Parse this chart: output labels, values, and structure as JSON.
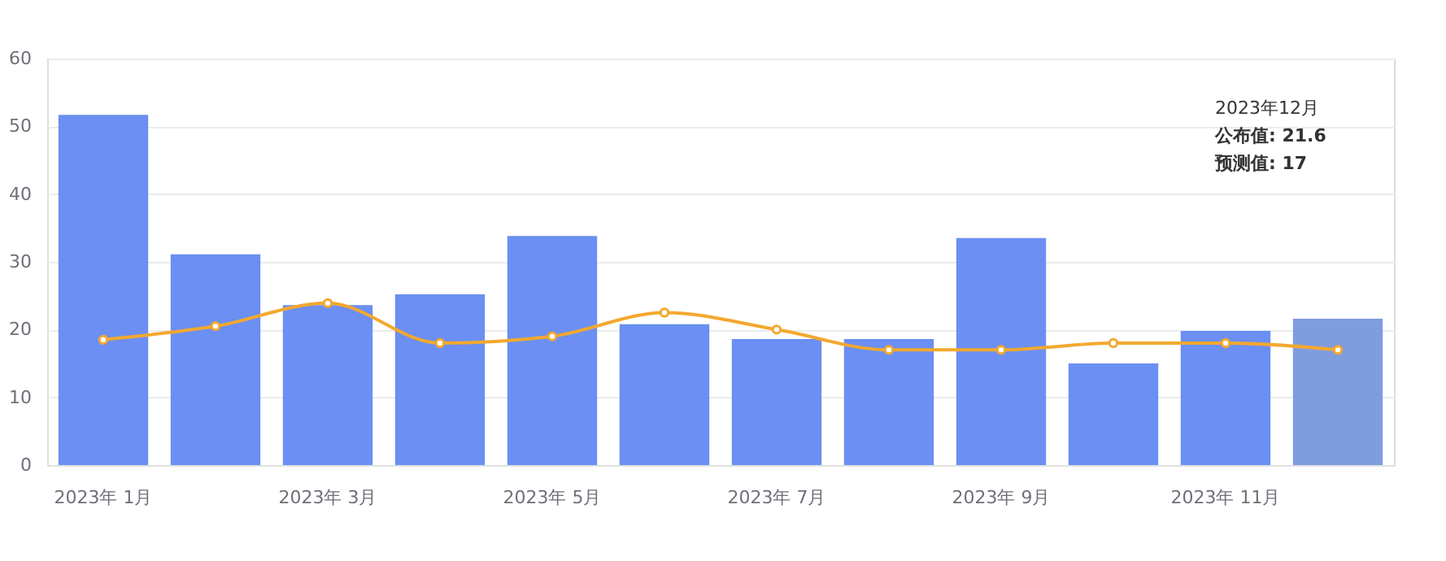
{
  "chart_data": {
    "type": "bar",
    "categories": [
      "2023年 1月",
      null,
      "2023年 3月",
      null,
      "2023年 5月",
      null,
      "2023年 7月",
      null,
      "2023年 9月",
      null,
      "2023年 11月",
      null
    ],
    "series": [
      {
        "colors": [
          "#6b8ff2",
          "#6b8ff2",
          "#6b8ff2",
          "#6b8ff2",
          "#6b8ff2",
          "#6b8ff2",
          "#6b8ff2",
          "#6b8ff2",
          "#6b8ff2",
          "#6b8ff2",
          "#6b8ff2",
          "#7f9cdf"
        ],
        "values": [
          51.7,
          31.1,
          23.6,
          25.2,
          33.8,
          20.8,
          18.6,
          18.6,
          33.5,
          15.0,
          19.8,
          21.6
        ]
      },
      {
        "type": "line",
        "color": "#f3a82f",
        "marker": "circle",
        "values": [
          18.5,
          20.5,
          23.9,
          18.0,
          19.0,
          22.5,
          20.0,
          17.0,
          17.0,
          18.0,
          18.0,
          17
        ]
      }
    ],
    "ylim": [
      0,
      60
    ],
    "yticks": [
      0,
      10,
      20,
      30,
      40,
      50,
      60
    ],
    "grid": "y",
    "annotations": [
      "2023年12月",
      "公布值: 21.6",
      "预测值: 17"
    ]
  }
}
